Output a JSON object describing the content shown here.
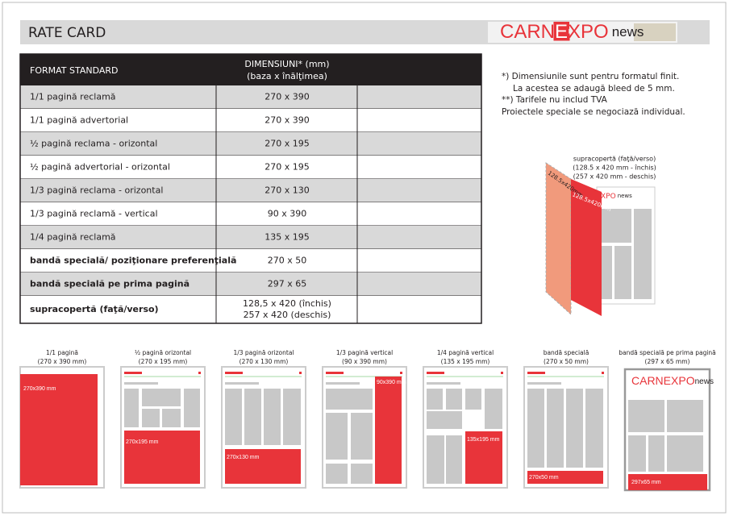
{
  "header": {
    "title": "RATE CARD"
  },
  "logo": {
    "parts": [
      "CARN",
      "E",
      "XPO",
      "news"
    ]
  },
  "table": {
    "header_format": "FORMAT STANDARD",
    "header_dims": [
      "DIMENSIUNI* (mm)",
      "(baza x înălţimea)"
    ],
    "rows": [
      {
        "format": "1/1 pagină reclamă",
        "dims": [
          "270 x 390"
        ],
        "bold": false
      },
      {
        "format": "1/1 pagină advertorial",
        "dims": [
          "270 x 390"
        ],
        "bold": false
      },
      {
        "format": "½ pagină reclama - orizontal",
        "dims": [
          "270 x 195"
        ],
        "bold": false
      },
      {
        "format": "½ pagină advertorial - orizontal",
        "dims": [
          "270 x 195"
        ],
        "bold": false
      },
      {
        "format": "1/3 pagină reclama - orizontal",
        "dims": [
          "270 x 130"
        ],
        "bold": false
      },
      {
        "format": "1/3 pagină reclamă - vertical",
        "dims": [
          "90 x 390"
        ],
        "bold": false
      },
      {
        "format": "1/4 pagină reclamă",
        "dims": [
          "135 x 195"
        ],
        "bold": false
      },
      {
        "format": "bandă specială/ poziţionare preferenţială",
        "dims": [
          "270 x 50"
        ],
        "bold": true
      },
      {
        "format": "bandă specială pe prima pagină",
        "dims": [
          "297 x 65"
        ],
        "bold": true
      },
      {
        "format": "supracopertă (faţă/verso)",
        "dims": [
          "128,5 x 420 (închis)",
          "257 x 420 (deschis)"
        ],
        "bold": true
      }
    ]
  },
  "notes": [
    "*) Dimensiunile sunt pentru formatul finit.",
    "La acestea se adaugă bleed de 5 mm.",
    "**) Tarifele nu includ TVA",
    "Proiectele speciale se negociază individual."
  ],
  "cover": {
    "label": [
      "supracopertă (faţă/verso)",
      "(128.5 x 420 mm - închis)",
      "(257 x 420 mm - deschis)"
    ],
    "strip_labels": [
      "128.5x420mm",
      "128.5x420mm"
    ]
  },
  "thumbnails": [
    {
      "title": "1/1 pagină",
      "dims": "(270 x 390 mm)",
      "label": "270x390 mm"
    },
    {
      "title": "½ pagină orizontal",
      "dims": "(270 x 195 mm)",
      "label": "270x195 mm"
    },
    {
      "title": "1/3 pagină orizontal",
      "dims": "(270 x 130 mm)",
      "label": "270x130 mm"
    },
    {
      "title": "1/3 pagină vertical",
      "dims": "(90 x 390 mm)",
      "label": "90x390 mm"
    },
    {
      "title": "1/4 pagină vertical",
      "dims": "(135 x 195 mm)",
      "label": "135x195 mm"
    },
    {
      "title": "bandă specială",
      "dims": "(270 x 50 mm)",
      "label": "270x50 mm"
    },
    {
      "title": "bandă specială pe prima pagină",
      "dims": "(297 x 65 mm)",
      "label": "297x65 mm"
    }
  ]
}
